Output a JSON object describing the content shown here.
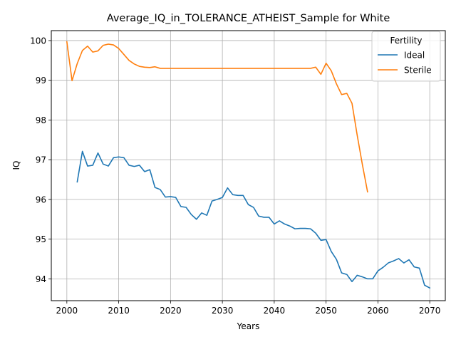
{
  "chart_data": {
    "type": "line",
    "title": "Average_IQ_in_TOLERANCE_ATHEIST_Sample for White",
    "xlabel": "Years",
    "ylabel": "IQ",
    "xlim": [
      1997,
      2073
    ],
    "ylim": [
      93.45,
      100.25
    ],
    "xticks": [
      2000,
      2010,
      2020,
      2030,
      2040,
      2050,
      2060,
      2070
    ],
    "yticks": [
      94,
      95,
      96,
      97,
      98,
      99,
      100
    ],
    "grid": true,
    "legend": {
      "title": "Fertility",
      "position": "top-right"
    },
    "series": [
      {
        "name": "Ideal",
        "color": "#1f77b4",
        "x": [
          2002,
          2003,
          2004,
          2005,
          2006,
          2007,
          2008,
          2009,
          2010,
          2011,
          2012,
          2013,
          2014,
          2015,
          2016,
          2017,
          2018,
          2019,
          2020,
          2021,
          2022,
          2023,
          2024,
          2025,
          2026,
          2027,
          2028,
          2029,
          2030,
          2031,
          2032,
          2033,
          2034,
          2035,
          2036,
          2037,
          2038,
          2039,
          2040,
          2041,
          2042,
          2043,
          2044,
          2045,
          2046,
          2047,
          2048,
          2049,
          2050,
          2051,
          2052,
          2053,
          2054,
          2055,
          2056,
          2057,
          2058,
          2059,
          2060,
          2061,
          2062,
          2063,
          2064,
          2065,
          2066,
          2067,
          2068,
          2069,
          2070
        ],
        "y": [
          96.44,
          97.21,
          96.84,
          96.86,
          97.17,
          96.89,
          96.84,
          97.05,
          97.07,
          97.05,
          96.86,
          96.83,
          96.86,
          96.7,
          96.75,
          96.3,
          96.25,
          96.06,
          96.07,
          96.05,
          95.82,
          95.8,
          95.62,
          95.5,
          95.66,
          95.6,
          95.96,
          96.0,
          96.05,
          96.29,
          96.12,
          96.1,
          96.1,
          95.87,
          95.8,
          95.58,
          95.55,
          95.55,
          95.38,
          95.46,
          95.38,
          95.33,
          95.26,
          95.27,
          95.27,
          95.26,
          95.15,
          94.97,
          94.99,
          94.69,
          94.49,
          94.15,
          94.11,
          93.93,
          94.09,
          94.05,
          94.0,
          94.0,
          94.2,
          94.29,
          94.4,
          94.45,
          94.51,
          94.4,
          94.48,
          94.3,
          94.27,
          93.84,
          93.77
        ]
      },
      {
        "name": "Sterile",
        "color": "#ff7f0e",
        "x": [
          2000,
          2001,
          2002,
          2003,
          2004,
          2005,
          2006,
          2007,
          2008,
          2009,
          2010,
          2011,
          2012,
          2013,
          2014,
          2015,
          2016,
          2017,
          2018,
          2019,
          2020,
          2021,
          2022,
          2023,
          2024,
          2025,
          2026,
          2027,
          2028,
          2029,
          2030,
          2031,
          2032,
          2033,
          2034,
          2035,
          2036,
          2037,
          2038,
          2039,
          2040,
          2041,
          2042,
          2043,
          2044,
          2045,
          2046,
          2047,
          2048,
          2049,
          2050,
          2051,
          2052,
          2053,
          2054,
          2055,
          2056,
          2057,
          2058
        ],
        "y": [
          99.97,
          98.99,
          99.42,
          99.75,
          99.86,
          99.71,
          99.74,
          99.88,
          99.91,
          99.89,
          99.8,
          99.65,
          99.5,
          99.41,
          99.35,
          99.33,
          99.32,
          99.34,
          99.3,
          99.3,
          99.3,
          99.3,
          99.3,
          99.3,
          99.3,
          99.3,
          99.3,
          99.3,
          99.3,
          99.3,
          99.3,
          99.3,
          99.3,
          99.3,
          99.3,
          99.3,
          99.3,
          99.3,
          99.3,
          99.3,
          99.3,
          99.3,
          99.3,
          99.3,
          99.3,
          99.3,
          99.3,
          99.3,
          99.33,
          99.15,
          99.43,
          99.24,
          98.91,
          98.64,
          98.67,
          98.42,
          97.62,
          96.88,
          96.19
        ]
      }
    ]
  }
}
